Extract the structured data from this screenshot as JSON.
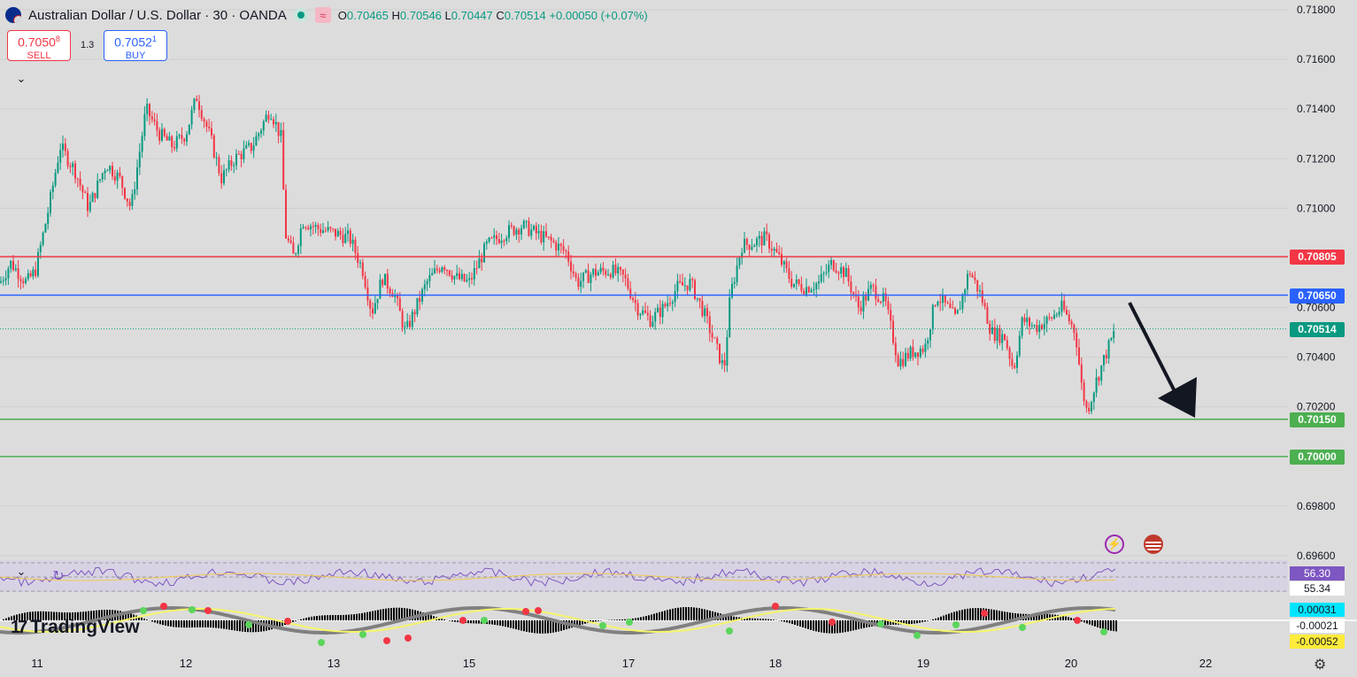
{
  "header": {
    "symbol_title": "Australian Dollar / U.S. Dollar · 30 · OANDA",
    "ohlc": {
      "o": "0.70465",
      "h": "0.70546",
      "l": "0.70447",
      "c": "0.70514",
      "change": "+0.00050 (+0.07%)"
    },
    "labels": {
      "o": "O",
      "h": "H",
      "l": "L",
      "c": "C"
    }
  },
  "trade": {
    "sell_price": "0.7050",
    "sell_sup": "8",
    "sell_label": "SELL",
    "buy_price": "0.7052",
    "buy_sup": "1",
    "buy_label": "BUY",
    "spread": "1.3"
  },
  "price_axis": [
    "0.71800",
    "0.71600",
    "0.71400",
    "0.71200",
    "0.71000",
    "0.70600",
    "0.70400",
    "0.70200",
    "0.69800",
    "0.69600"
  ],
  "time_axis": [
    "11",
    "12",
    "13",
    "15",
    "17",
    "18",
    "19",
    "20",
    "22"
  ],
  "price_tags": [
    {
      "value": "0.70805",
      "color": "#f23645"
    },
    {
      "value": "0.70650",
      "color": "#2962ff"
    },
    {
      "value": "0.70514",
      "color": "#089981"
    },
    {
      "value": "0.70150",
      "color": "#4caf50"
    },
    {
      "value": "0.70000",
      "color": "#4caf50"
    }
  ],
  "rsi": {
    "value1": "56.30",
    "value2": "55.34"
  },
  "macd": {
    "v1": "0.00031",
    "v2": "-0.00021",
    "v3": "-0.00052"
  },
  "brand": "TradingView",
  "icons": {
    "lightning": "lightning-icon",
    "flag": "us-flag-icon",
    "settings": "gear-icon"
  },
  "chart_data": {
    "type": "candlestick",
    "instrument": "AUD/USD",
    "timeframe": "30",
    "ylim": [
      0.696,
      0.718
    ],
    "horizontal_lines": [
      {
        "value": 0.70805,
        "color": "#f23645"
      },
      {
        "value": 0.7065,
        "color": "#2962ff"
      },
      {
        "value": 0.7015,
        "color": "#4caf50"
      },
      {
        "value": 0.7,
        "color": "#4caf50"
      }
    ],
    "last_price": 0.70514,
    "close_path": [
      [
        0,
        0.707
      ],
      [
        12,
        0.7078
      ],
      [
        30,
        0.707
      ],
      [
        40,
        0.7075
      ],
      [
        55,
        0.71
      ],
      [
        68,
        0.7125
      ],
      [
        85,
        0.7115
      ],
      [
        100,
        0.71
      ],
      [
        120,
        0.7118
      ],
      [
        135,
        0.7112
      ],
      [
        148,
        0.71
      ],
      [
        165,
        0.714
      ],
      [
        180,
        0.713
      ],
      [
        195,
        0.7125
      ],
      [
        210,
        0.713
      ],
      [
        222,
        0.7145
      ],
      [
        238,
        0.7128
      ],
      [
        250,
        0.7112
      ],
      [
        265,
        0.712
      ],
      [
        285,
        0.7125
      ],
      [
        305,
        0.714
      ],
      [
        318,
        0.7128
      ],
      [
        322,
        0.709
      ],
      [
        332,
        0.708
      ],
      [
        342,
        0.7095
      ],
      [
        358,
        0.7092
      ],
      [
        378,
        0.709
      ],
      [
        395,
        0.7088
      ],
      [
        410,
        0.7075
      ],
      [
        420,
        0.7058
      ],
      [
        432,
        0.7072
      ],
      [
        445,
        0.7066
      ],
      [
        458,
        0.705
      ],
      [
        470,
        0.706
      ],
      [
        482,
        0.707
      ],
      [
        500,
        0.7078
      ],
      [
        515,
        0.7072
      ],
      [
        530,
        0.707
      ],
      [
        550,
        0.7085
      ],
      [
        570,
        0.709
      ],
      [
        590,
        0.7093
      ],
      [
        605,
        0.709
      ],
      [
        625,
        0.7086
      ],
      [
        640,
        0.7082
      ],
      [
        652,
        0.707
      ],
      [
        670,
        0.7074
      ],
      [
        690,
        0.7075
      ],
      [
        705,
        0.7072
      ],
      [
        720,
        0.706
      ],
      [
        735,
        0.7055
      ],
      [
        750,
        0.706
      ],
      [
        765,
        0.7068
      ],
      [
        780,
        0.707
      ],
      [
        795,
        0.7058
      ],
      [
        808,
        0.7045
      ],
      [
        818,
        0.7035
      ],
      [
        825,
        0.7065
      ],
      [
        838,
        0.7085
      ],
      [
        850,
        0.7086
      ],
      [
        865,
        0.7088
      ],
      [
        880,
        0.708
      ],
      [
        895,
        0.707
      ],
      [
        910,
        0.7068
      ],
      [
        925,
        0.707
      ],
      [
        940,
        0.7078
      ],
      [
        955,
        0.7074
      ],
      [
        970,
        0.706
      ],
      [
        985,
        0.7068
      ],
      [
        1000,
        0.7062
      ],
      [
        1015,
        0.7038
      ],
      [
        1030,
        0.7042
      ],
      [
        1045,
        0.7044
      ],
      [
        1058,
        0.7065
      ],
      [
        1070,
        0.706
      ],
      [
        1080,
        0.7055
      ],
      [
        1095,
        0.7075
      ],
      [
        1108,
        0.7065
      ],
      [
        1120,
        0.705
      ],
      [
        1135,
        0.7048
      ],
      [
        1145,
        0.7035
      ],
      [
        1155,
        0.7055
      ],
      [
        1170,
        0.7052
      ],
      [
        1185,
        0.7055
      ],
      [
        1200,
        0.706
      ],
      [
        1215,
        0.705
      ],
      [
        1222,
        0.7028
      ],
      [
        1228,
        0.7018
      ],
      [
        1238,
        0.703
      ],
      [
        1250,
        0.7042
      ],
      [
        1260,
        0.7051
      ]
    ]
  }
}
